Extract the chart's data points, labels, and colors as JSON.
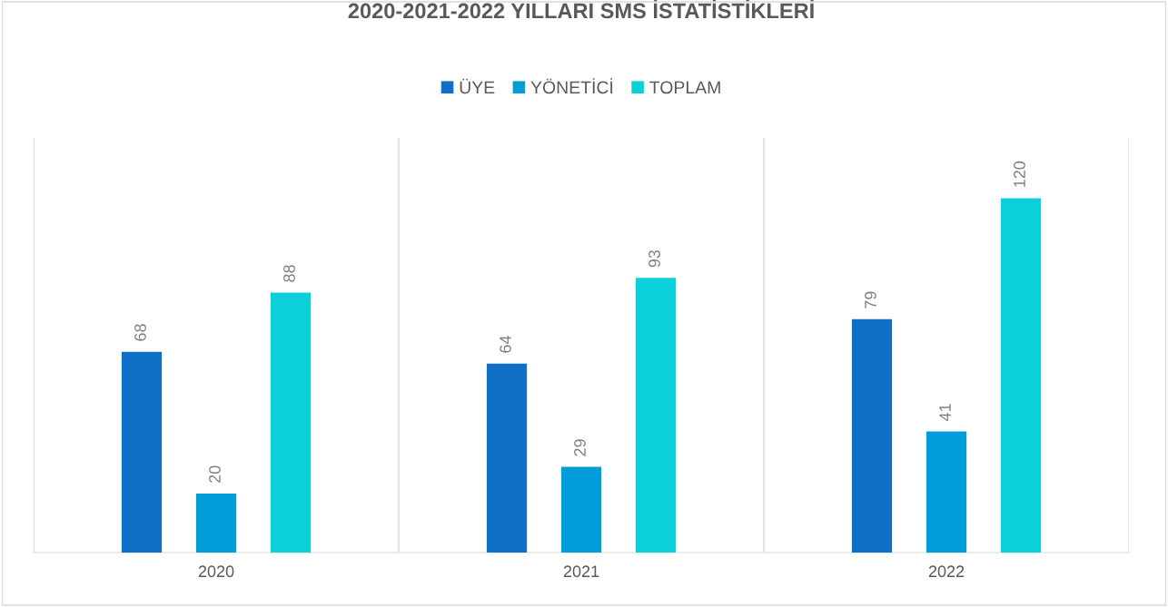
{
  "chart_data": {
    "type": "bar",
    "title": "2020-2021-2022 YILLARI SMS İSTATİSTİKLERİ",
    "categories": [
      "2020",
      "2021",
      "2022"
    ],
    "series": [
      {
        "name": "ÜYE",
        "color": "#0f6fc6",
        "values": [
          68,
          64,
          79
        ]
      },
      {
        "name": "YÖNETİCİ",
        "color": "#009dd9",
        "values": [
          20,
          29,
          41
        ]
      },
      {
        "name": "TOPLAM",
        "color": "#0bd0d9",
        "values": [
          88,
          93,
          120
        ]
      }
    ],
    "data_labels": true,
    "grid": "x",
    "legend": "top"
  }
}
